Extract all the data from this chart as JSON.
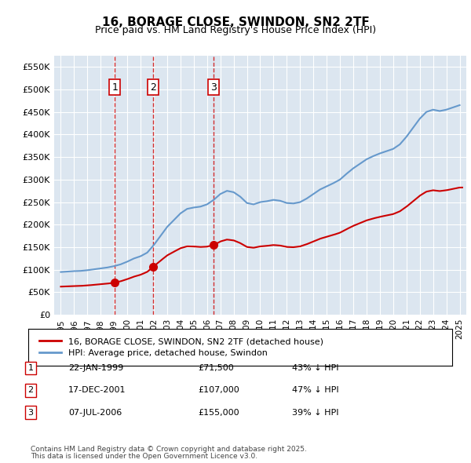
{
  "title": "16, BORAGE CLOSE, SWINDON, SN2 2TF",
  "subtitle": "Price paid vs. HM Land Registry's House Price Index (HPI)",
  "legend_line1": "16, BORAGE CLOSE, SWINDON, SN2 2TF (detached house)",
  "legend_line2": "HPI: Average price, detached house, Swindon",
  "footer1": "Contains HM Land Registry data © Crown copyright and database right 2025.",
  "footer2": "This data is licensed under the Open Government Licence v3.0.",
  "sale_points": [
    {
      "label": "1",
      "date": "22-JAN-1999",
      "price": 71500,
      "year": 1999.06
    },
    {
      "label": "2",
      "date": "17-DEC-2001",
      "price": 107000,
      "year": 2001.96
    },
    {
      "label": "3",
      "date": "07-JUL-2006",
      "price": 155000,
      "year": 2006.51
    }
  ],
  "sale_table": [
    {
      "num": "1",
      "date": "22-JAN-1999",
      "price": "£71,500",
      "pct": "43% ↓ HPI"
    },
    {
      "num": "2",
      "date": "17-DEC-2001",
      "price": "£107,000",
      "pct": "47% ↓ HPI"
    },
    {
      "num": "3",
      "date": "07-JUL-2006",
      "price": "£155,000",
      "pct": "39% ↓ HPI"
    }
  ],
  "red_color": "#cc0000",
  "blue_color": "#6699cc",
  "vline_color": "#cc0000",
  "background_color": "#dce6f0",
  "ylim": [
    0,
    575000
  ],
  "yticks": [
    0,
    50000,
    100000,
    150000,
    200000,
    250000,
    300000,
    350000,
    400000,
    450000,
    500000,
    550000
  ],
  "xlim": [
    1994.5,
    2025.5
  ]
}
